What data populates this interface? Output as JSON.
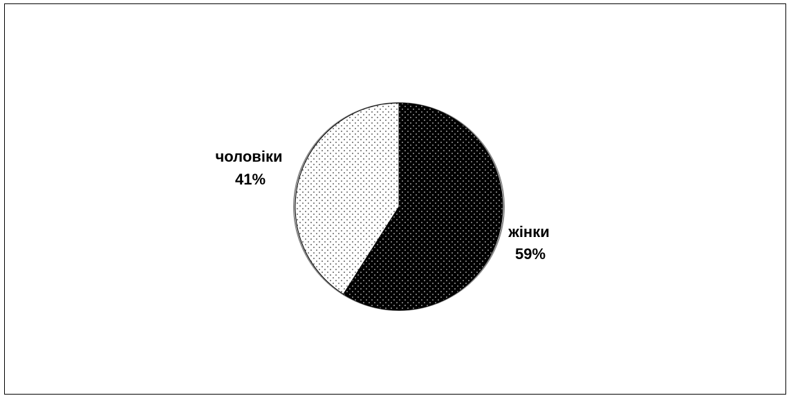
{
  "chart_data": {
    "type": "pie",
    "title": "",
    "slices": [
      {
        "label": "жінки",
        "value": 59,
        "percent_label": "59%",
        "pattern": "dark-dotted"
      },
      {
        "label": "чоловіки",
        "value": 41,
        "percent_label": "41%",
        "pattern": "light-dotted"
      }
    ],
    "start_angle": "12 o'clock",
    "direction": "clockwise",
    "legend": "none",
    "colors": {
      "dark_fill": "#000000",
      "light_fill": "#ffffff",
      "outline": "#000000"
    }
  }
}
